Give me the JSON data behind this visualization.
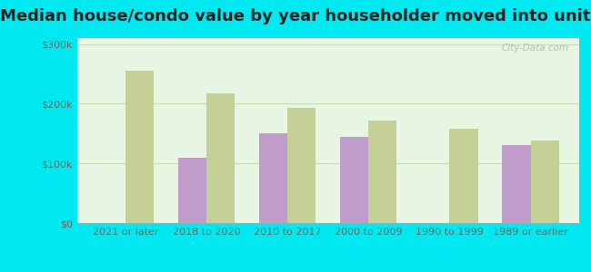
{
  "title": "Median house/condo value by year householder moved into unit",
  "categories": [
    "2021 or later",
    "2018 to 2020",
    "2010 to 2017",
    "2000 to 2009",
    "1990 to 1999",
    "1989 or earlier"
  ],
  "tallassee": [
    null,
    110000,
    150000,
    145000,
    null,
    130000
  ],
  "alabama": [
    255000,
    218000,
    193000,
    172000,
    158000,
    138000
  ],
  "tallassee_color": "#bf9cc9",
  "alabama_color": "#c5d096",
  "background_outer": "#00e8f0",
  "background_inner_top": "#e8f5e2",
  "background_inner_bottom": "#d8edcc",
  "grid_color": "#c8ddb0",
  "title_fontsize": 13,
  "tick_fontsize": 8,
  "legend_fontsize": 9,
  "ylim": [
    0,
    310000
  ],
  "yticks": [
    0,
    100000,
    200000,
    300000
  ],
  "ytick_labels": [
    "$0",
    "$100k",
    "$200k",
    "$300k"
  ],
  "bar_width": 0.35,
  "watermark": "City-Data.com"
}
